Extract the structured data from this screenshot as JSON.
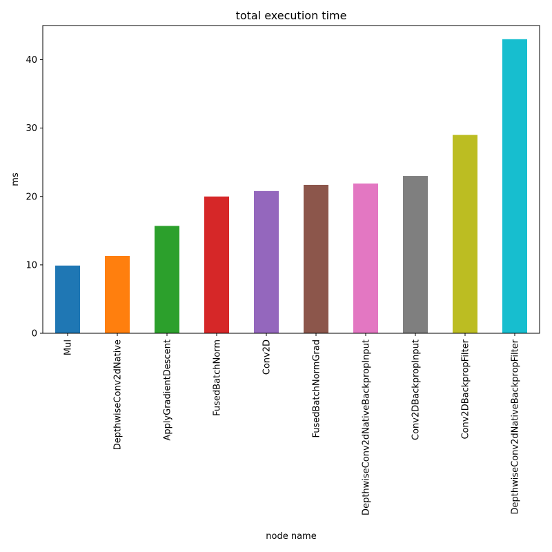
{
  "chart_data": {
    "type": "bar",
    "title": "total execution time",
    "xlabel": "node name",
    "ylabel": "ms",
    "categories": [
      "Mul",
      "DepthwiseConv2dNative",
      "ApplyGradientDescent",
      "FusedBatchNorm",
      "Conv2D",
      "FusedBatchNormGrad",
      "DepthwiseConv2dNativeBackpropInput",
      "Conv2DBackpropInput",
      "Conv2DBackpropFilter",
      "DepthwiseConv2dNativeBackpropFilter"
    ],
    "values": [
      9.9,
      11.3,
      15.7,
      20.0,
      20.8,
      21.7,
      21.9,
      23.0,
      29.0,
      43.0
    ],
    "colors": [
      "#1f77b4",
      "#ff7f0e",
      "#2ca02c",
      "#d62728",
      "#9467bd",
      "#8c564b",
      "#e377c2",
      "#7f7f7f",
      "#bcbd22",
      "#17becf"
    ],
    "ylim": [
      0,
      45
    ],
    "yticks": [
      0,
      10,
      20,
      30,
      40
    ],
    "grid": false,
    "legend": "none"
  }
}
